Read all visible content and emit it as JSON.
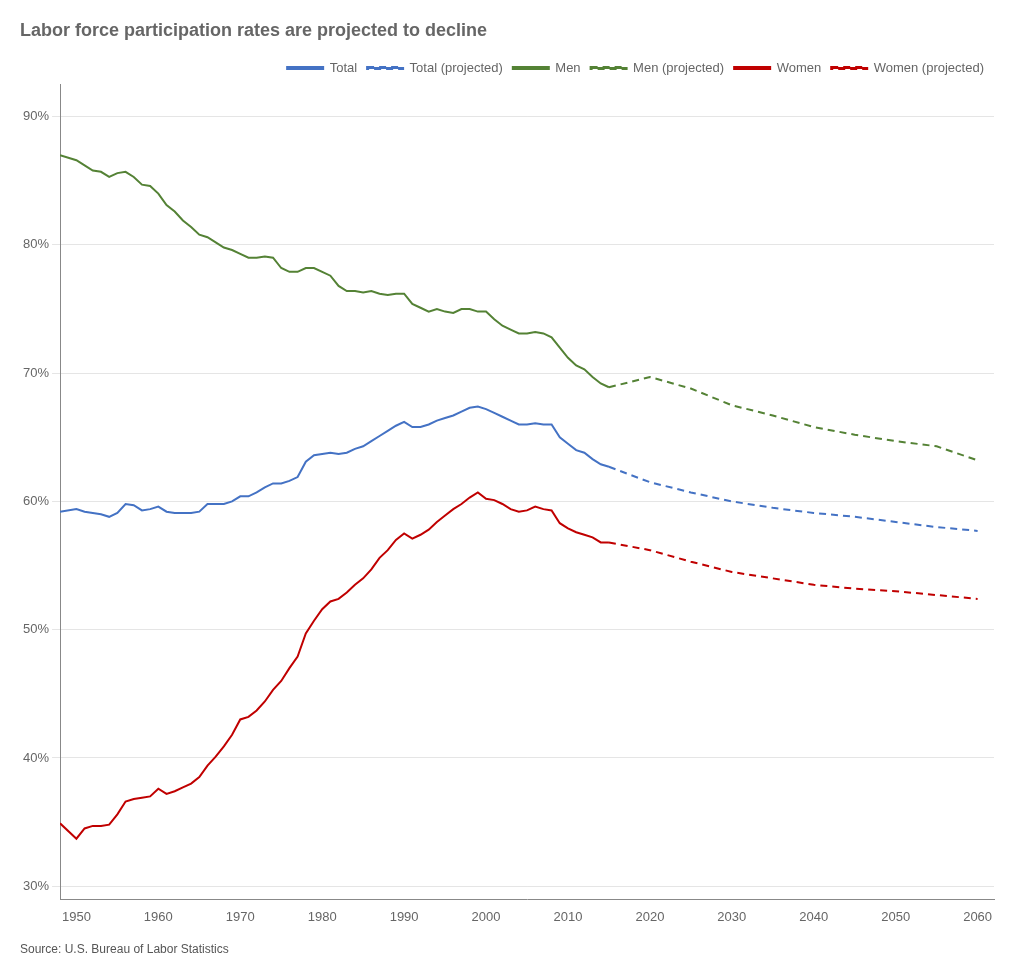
{
  "chart_data": {
    "type": "line",
    "title": "Labor force participation rates are projected to decline",
    "annotations": [
      "Source: U.S. Bureau of Labor Statistics"
    ],
    "xlim": [
      1948,
      2062
    ],
    "xticks": [
      1950,
      1960,
      1970,
      1980,
      1990,
      2000,
      2010,
      2020,
      2030,
      2040,
      2050,
      2060
    ],
    "ylim": [
      0.29,
      0.925
    ],
    "yticks": [
      {
        "value": 0.3,
        "label": "30%"
      },
      {
        "value": 0.4,
        "label": "40%"
      },
      {
        "value": 0.5,
        "label": "50%"
      },
      {
        "value": 0.6,
        "label": "60%"
      },
      {
        "value": 0.7,
        "label": "70%"
      },
      {
        "value": 0.8,
        "label": "80%"
      },
      {
        "value": 0.9,
        "label": "90%"
      }
    ],
    "grid": "y",
    "legend": "upper right",
    "series": [
      {
        "name": "Total",
        "color": "#4472c4",
        "line_style": "solid",
        "x": [
          1948,
          1950,
          1951,
          1952,
          1953,
          1954,
          1955,
          1956,
          1957,
          1958,
          1959,
          1960,
          1961,
          1962,
          1963,
          1964,
          1965,
          1966,
          1967,
          1968,
          1969,
          1970,
          1971,
          1972,
          1973,
          1974,
          1975,
          1976,
          1977,
          1978,
          1979,
          1980,
          1981,
          1982,
          1983,
          1984,
          1985,
          1986,
          1987,
          1988,
          1989,
          1990,
          1991,
          1992,
          1993,
          1994,
          1995,
          1996,
          1997,
          1998,
          1999,
          2000,
          2001,
          2002,
          2003,
          2004,
          2005,
          2006,
          2007,
          2008,
          2009,
          2010,
          2011,
          2012,
          2013,
          2014,
          2015
        ],
        "values": [
          0.592,
          0.594,
          0.592,
          0.591,
          0.59,
          0.588,
          0.591,
          0.598,
          0.597,
          0.593,
          0.594,
          0.596,
          0.592,
          0.591,
          0.591,
          0.591,
          0.592,
          0.598,
          0.598,
          0.598,
          0.6,
          0.604,
          0.604,
          0.607,
          0.611,
          0.614,
          0.614,
          0.616,
          0.619,
          0.631,
          0.636,
          0.637,
          0.638,
          0.637,
          0.638,
          0.641,
          0.643,
          0.647,
          0.651,
          0.655,
          0.659,
          0.662,
          0.658,
          0.658,
          0.66,
          0.663,
          0.665,
          0.667,
          0.67,
          0.673,
          0.674,
          0.672,
          0.669,
          0.666,
          0.663,
          0.66,
          0.66,
          0.661,
          0.66,
          0.66,
          0.65,
          0.645,
          0.64,
          0.638,
          0.633,
          0.629,
          0.627
        ]
      },
      {
        "name": "Total (projected)",
        "color": "#4472c4",
        "line_style": "dashed",
        "x": [
          2015,
          2020,
          2025,
          2030,
          2035,
          2040,
          2045,
          2050,
          2055,
          2060
        ],
        "values": [
          0.627,
          0.615,
          0.607,
          0.6,
          0.595,
          0.591,
          0.588,
          0.584,
          0.58,
          0.577
        ]
      },
      {
        "name": "Men",
        "color": "#548235",
        "line_style": "solid",
        "x": [
          1948,
          1950,
          1951,
          1952,
          1953,
          1954,
          1955,
          1956,
          1957,
          1958,
          1959,
          1960,
          1961,
          1962,
          1963,
          1964,
          1965,
          1966,
          1967,
          1968,
          1969,
          1970,
          1971,
          1972,
          1973,
          1974,
          1975,
          1976,
          1977,
          1978,
          1979,
          1980,
          1981,
          1982,
          1983,
          1984,
          1985,
          1986,
          1987,
          1988,
          1989,
          1990,
          1991,
          1992,
          1993,
          1994,
          1995,
          1996,
          1997,
          1998,
          1999,
          2000,
          2001,
          2002,
          2003,
          2004,
          2005,
          2006,
          2007,
          2008,
          2009,
          2010,
          2011,
          2012,
          2013,
          2014,
          2015
        ],
        "values": [
          0.87,
          0.866,
          0.862,
          0.858,
          0.857,
          0.853,
          0.856,
          0.857,
          0.853,
          0.847,
          0.846,
          0.84,
          0.831,
          0.826,
          0.819,
          0.814,
          0.808,
          0.806,
          0.802,
          0.798,
          0.796,
          0.793,
          0.79,
          0.79,
          0.791,
          0.79,
          0.782,
          0.779,
          0.779,
          0.782,
          0.782,
          0.779,
          0.776,
          0.768,
          0.764,
          0.764,
          0.763,
          0.764,
          0.762,
          0.761,
          0.762,
          0.762,
          0.754,
          0.751,
          0.748,
          0.75,
          0.748,
          0.747,
          0.75,
          0.75,
          0.748,
          0.748,
          0.742,
          0.737,
          0.734,
          0.731,
          0.731,
          0.732,
          0.731,
          0.728,
          0.72,
          0.712,
          0.706,
          0.703,
          0.697,
          0.692,
          0.689
        ]
      },
      {
        "name": "Men (projected)",
        "color": "#548235",
        "line_style": "dashed",
        "x": [
          2015,
          2020,
          2025,
          2030,
          2035,
          2040,
          2045,
          2050,
          2055,
          2060
        ],
        "values": [
          0.689,
          0.697,
          0.688,
          0.675,
          0.667,
          0.658,
          0.652,
          0.647,
          0.643,
          0.632
        ]
      },
      {
        "name": "Women",
        "color": "#c00000",
        "line_style": "solid",
        "x": [
          1948,
          1950,
          1951,
          1952,
          1953,
          1954,
          1955,
          1956,
          1957,
          1958,
          1959,
          1960,
          1961,
          1962,
          1963,
          1964,
          1965,
          1966,
          1967,
          1968,
          1969,
          1970,
          1971,
          1972,
          1973,
          1974,
          1975,
          1976,
          1977,
          1978,
          1979,
          1980,
          1981,
          1982,
          1983,
          1984,
          1985,
          1986,
          1987,
          1988,
          1989,
          1990,
          1991,
          1992,
          1993,
          1994,
          1995,
          1996,
          1997,
          1998,
          1999,
          2000,
          2001,
          2002,
          2003,
          2004,
          2005,
          2006,
          2007,
          2008,
          2009,
          2010,
          2011,
          2012,
          2013,
          2014,
          2015
        ],
        "values": [
          0.349,
          0.337,
          0.345,
          0.347,
          0.347,
          0.348,
          0.356,
          0.366,
          0.368,
          0.369,
          0.37,
          0.376,
          0.372,
          0.374,
          0.377,
          0.38,
          0.385,
          0.394,
          0.401,
          0.409,
          0.418,
          0.43,
          0.432,
          0.437,
          0.444,
          0.453,
          0.46,
          0.47,
          0.479,
          0.497,
          0.507,
          0.516,
          0.522,
          0.524,
          0.529,
          0.535,
          0.54,
          0.547,
          0.556,
          0.562,
          0.57,
          0.575,
          0.571,
          0.574,
          0.578,
          0.584,
          0.589,
          0.594,
          0.598,
          0.603,
          0.607,
          0.602,
          0.601,
          0.598,
          0.594,
          0.592,
          0.593,
          0.596,
          0.594,
          0.593,
          0.583,
          0.579,
          0.576,
          0.574,
          0.572,
          0.568,
          0.568
        ]
      },
      {
        "name": "Women (projected)",
        "color": "#c00000",
        "line_style": "dashed",
        "x": [
          2015,
          2020,
          2025,
          2030,
          2035,
          2040,
          2045,
          2050,
          2055,
          2060
        ],
        "values": [
          0.568,
          0.562,
          0.553,
          0.545,
          0.54,
          0.535,
          0.532,
          0.53,
          0.527,
          0.524
        ]
      }
    ]
  }
}
